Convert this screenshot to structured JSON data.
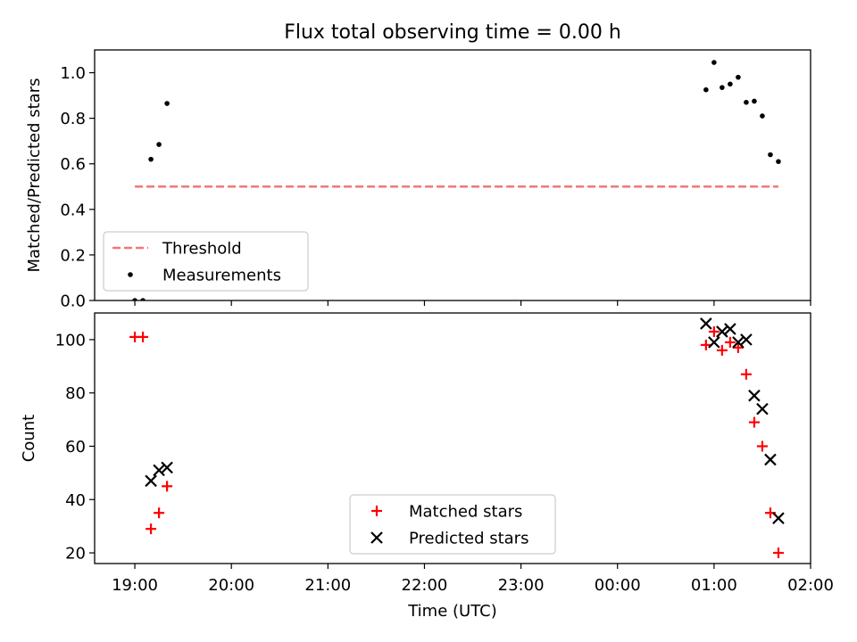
{
  "title": "Flux total observing time = 0.00 h",
  "chart_data": [
    {
      "type": "scatter",
      "ylabel": "Matched/Predicted stars",
      "xlim": [
        "18:35",
        "02:00"
      ],
      "ylim": [
        0,
        1.1
      ],
      "yticks": [
        0.0,
        0.2,
        0.4,
        0.6,
        0.8,
        1.0
      ],
      "yticklabels": [
        "0.0",
        "0.2",
        "0.4",
        "0.6",
        "0.8",
        "1.0"
      ],
      "grid": false,
      "legend": {
        "placement": "lower-left",
        "entries": [
          {
            "label": "Threshold",
            "style": "dashed-line",
            "color": "#f07878"
          },
          {
            "label": "Measurements",
            "style": "dot",
            "color": "#000000"
          }
        ]
      },
      "threshold": {
        "name": "Threshold",
        "y": 0.5,
        "x_start": "19:00",
        "x_end": "01:40",
        "color": "#f07878"
      },
      "series": [
        {
          "name": "Measurements",
          "color": "#000000",
          "points": [
            {
              "x": "19:00",
              "y": 0.0
            },
            {
              "x": "19:05",
              "y": 0.0
            },
            {
              "x": "19:10",
              "y": 0.62
            },
            {
              "x": "19:15",
              "y": 0.685
            },
            {
              "x": "19:20",
              "y": 0.865
            },
            {
              "x": "00:55",
              "y": 0.925
            },
            {
              "x": "01:00",
              "y": 1.045
            },
            {
              "x": "01:05",
              "y": 0.935
            },
            {
              "x": "01:10",
              "y": 0.95
            },
            {
              "x": "01:15",
              "y": 0.98
            },
            {
              "x": "01:20",
              "y": 0.87
            },
            {
              "x": "01:25",
              "y": 0.875
            },
            {
              "x": "01:30",
              "y": 0.81
            },
            {
              "x": "01:35",
              "y": 0.64
            },
            {
              "x": "01:40",
              "y": 0.61
            }
          ]
        }
      ]
    },
    {
      "type": "scatter",
      "ylabel": "Count",
      "xlabel": "Time (UTC)",
      "xlim": [
        "18:35",
        "02:00"
      ],
      "ylim": [
        16,
        110
      ],
      "yticks": [
        20,
        40,
        60,
        80,
        100
      ],
      "yticklabels": [
        "20",
        "40",
        "60",
        "80",
        "100"
      ],
      "xticks": [
        "19:00",
        "20:00",
        "21:00",
        "22:00",
        "23:00",
        "00:00",
        "01:00",
        "02:00"
      ],
      "xticklabels": [
        "19:00",
        "20:00",
        "21:00",
        "22:00",
        "23:00",
        "00:00",
        "01:00",
        "02:00"
      ],
      "grid": false,
      "legend": {
        "placement": "lower-center",
        "entries": [
          {
            "label": "Matched stars",
            "style": "plus",
            "color": "#ff0000"
          },
          {
            "label": "Predicted stars",
            "style": "x",
            "color": "#000000"
          }
        ]
      },
      "series": [
        {
          "name": "Matched stars",
          "marker": "plus",
          "color": "#ff0000",
          "points": [
            {
              "x": "19:00",
              "y": 101
            },
            {
              "x": "19:05",
              "y": 101
            },
            {
              "x": "19:10",
              "y": 29
            },
            {
              "x": "19:15",
              "y": 35
            },
            {
              "x": "19:20",
              "y": 45
            },
            {
              "x": "00:55",
              "y": 98
            },
            {
              "x": "01:00",
              "y": 103
            },
            {
              "x": "01:05",
              "y": 96
            },
            {
              "x": "01:10",
              "y": 99
            },
            {
              "x": "01:15",
              "y": 97
            },
            {
              "x": "01:20",
              "y": 87
            },
            {
              "x": "01:25",
              "y": 69
            },
            {
              "x": "01:30",
              "y": 60
            },
            {
              "x": "01:35",
              "y": 35
            },
            {
              "x": "01:40",
              "y": 20
            }
          ]
        },
        {
          "name": "Predicted stars",
          "marker": "x",
          "color": "#000000",
          "points": [
            {
              "x": "19:10",
              "y": 47
            },
            {
              "x": "19:15",
              "y": 51
            },
            {
              "x": "19:20",
              "y": 52
            },
            {
              "x": "00:55",
              "y": 106
            },
            {
              "x": "01:00",
              "y": 99
            },
            {
              "x": "01:05",
              "y": 103
            },
            {
              "x": "01:10",
              "y": 104
            },
            {
              "x": "01:15",
              "y": 99
            },
            {
              "x": "01:20",
              "y": 100
            },
            {
              "x": "01:25",
              "y": 79
            },
            {
              "x": "01:30",
              "y": 74
            },
            {
              "x": "01:35",
              "y": 55
            },
            {
              "x": "01:40",
              "y": 33
            }
          ]
        }
      ]
    }
  ]
}
